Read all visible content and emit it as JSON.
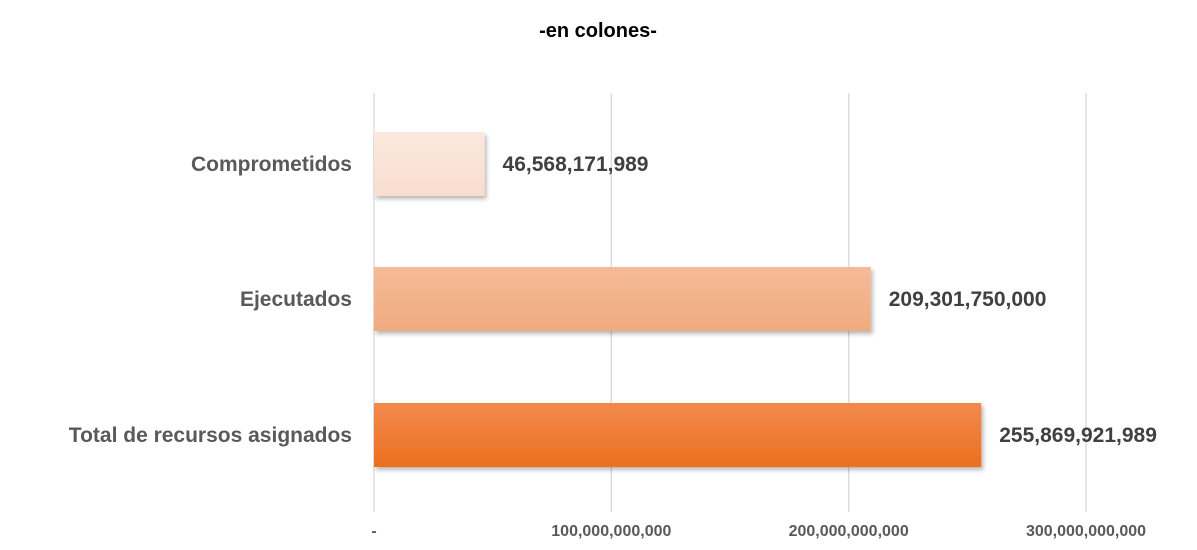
{
  "chart_data": {
    "type": "bar",
    "orientation": "horizontal",
    "title": "",
    "subtitle": "-en colones-",
    "categories": [
      "Comprometidos",
      "Ejecutados",
      "Total de recursos asignados"
    ],
    "values": [
      46568171989,
      209301750000,
      255869921989
    ],
    "value_labels": [
      "46,568,171,989",
      "209,301,750,000",
      "255,869,921,989"
    ],
    "colors": [
      "#FAE3D7",
      "#F2B188",
      "#ED7D31"
    ],
    "xlim": [
      0,
      300000000000
    ],
    "xticks": [
      0,
      100000000000,
      200000000000,
      300000000000
    ],
    "xtick_labels": [
      "-",
      "100,000,000,000",
      "200,000,000,000",
      "300,000,000,000"
    ],
    "xlabel": "",
    "ylabel": "",
    "grid": true,
    "legend": "none"
  }
}
